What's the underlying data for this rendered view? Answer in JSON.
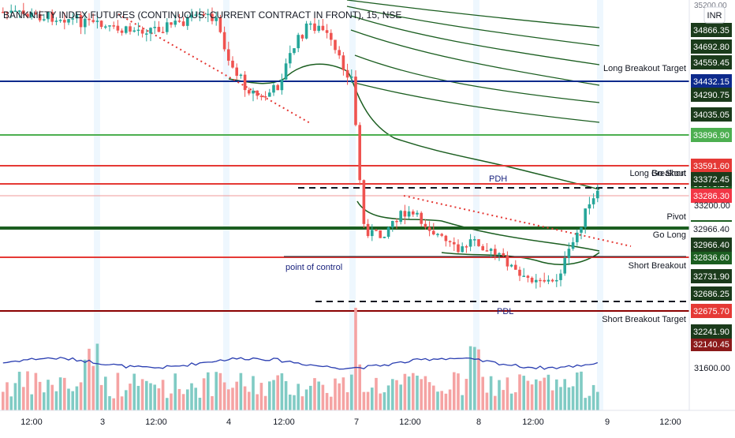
{
  "header": {
    "title": "BANKNIFTY INDEX FUTURES (CONTINUOUS: CURRENT CONTRACT IN FRONT), 15, NSE",
    "currency": "INR",
    "top_price": "35200.00"
  },
  "chart_data": {
    "type": "candlestick",
    "title": "BANKNIFTY INDEX FUTURES (CONTINUOUS: CURRENT CONTRACT IN FRONT), 15, NSE",
    "timeframe": "15",
    "exchange": "NSE",
    "currency": "INR",
    "y_axis_labels": [
      "34866.35",
      "34692.80",
      "34559.45",
      "34290.75",
      "34035.05",
      "33372.45",
      "33200.00",
      "32966.40",
      "32731.90",
      "32686.25",
      "32241.90",
      "31600.00"
    ],
    "x_axis_labels": [
      "12:00",
      "3",
      "12:00",
      "4",
      "12:00",
      "7",
      "12:00",
      "8",
      "12:00",
      "9",
      "12:00"
    ],
    "levels": [
      {
        "label": "Long Breakout Target",
        "price": "34432.15",
        "color": "#0d2a8c",
        "badge_bg": "#0d2a8c",
        "badge_fg": "#ffffff"
      },
      {
        "label": "",
        "price": "33896.90",
        "color": "#4caf50",
        "badge_bg": "#4caf50",
        "badge_fg": "#ffffff"
      },
      {
        "label": "Long Breakout",
        "price": "33591.60",
        "color": "#e53935",
        "badge_bg": "#e53935",
        "badge_fg": "#ffffff"
      },
      {
        "label": "Go Short",
        "price": "33373.20",
        "color": "#e53935",
        "badge_bg": "#1b5e20",
        "badge_fg": "#ffffff"
      },
      {
        "label": "",
        "price": "33286.30",
        "color": "#ef9a9a",
        "badge_bg": "#f23645",
        "badge_fg": "#ffffff"
      },
      {
        "label": "Pivot",
        "price": "32981.00",
        "color": "#1b5e20",
        "badge_bg": "#1b5e20",
        "badge_fg": "#ffffff"
      },
      {
        "label": "Go Long",
        "price": "32966.40",
        "color": "#1b5e20",
        "badge_bg": "#ffffff",
        "badge_fg": "#131722"
      },
      {
        "label": "Short Breakout",
        "price": "32836.60",
        "color": "#e53935",
        "badge_bg": "#1b5e20",
        "badge_fg": "#ffffff"
      },
      {
        "label": "",
        "price": "32686.25",
        "color": "#1b5e20",
        "badge_bg": "#1b5e20",
        "badge_fg": "#ffffff"
      },
      {
        "label": "Short Breakout Target",
        "price": "32675.70",
        "color": "#8b0000",
        "badge_bg": "#e53935",
        "badge_fg": "#ffffff"
      },
      {
        "label": "",
        "price": "32140.45",
        "color": "#8b0000",
        "badge_bg": "#8b1a1a",
        "badge_fg": "#ffffff"
      }
    ],
    "annotations": [
      "PDH",
      "PDL",
      "point of control"
    ],
    "colors": {
      "up": "#26a69a",
      "down": "#ef5350",
      "vol_up": "#80cbc4",
      "vol_down": "#f5a3a3",
      "ma": "#1b5e20",
      "vol_ma": "#2a3eb1",
      "trend": "#e53935"
    }
  }
}
